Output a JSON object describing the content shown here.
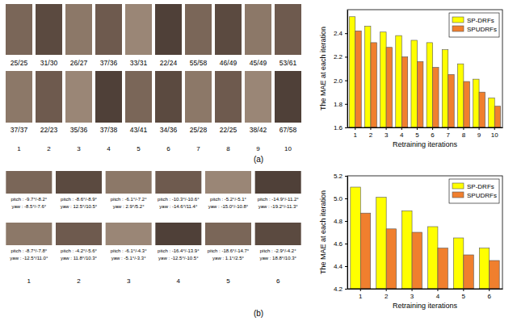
{
  "chart_data": [
    {
      "type": "bar",
      "x_label": "Retraining iterations",
      "y_label": "The MAE at each iteration",
      "categories": [
        "1",
        "2",
        "3",
        "4",
        "5",
        "6",
        "7",
        "8",
        "9",
        "10"
      ],
      "series": [
        {
          "name": "SP-DRFs",
          "color": "#ffff00",
          "values": [
            2.54,
            2.46,
            2.41,
            2.38,
            2.34,
            2.32,
            2.26,
            2.14,
            2.01,
            1.85
          ]
        },
        {
          "name": "SPUDRFs",
          "color": "#f07f2e",
          "values": [
            2.42,
            2.32,
            2.28,
            2.2,
            2.16,
            2.11,
            2.05,
            1.99,
            1.9,
            1.78
          ]
        }
      ],
      "ylim": [
        1.6,
        2.6
      ],
      "yticks": [
        1.6,
        1.8,
        {
          "value": 2,
          "label": "2.0"
        },
        2.2,
        2.4
      ],
      "grid": false,
      "legend": "upper right"
    },
    {
      "type": "bar",
      "x_label": "Retraining iterations",
      "y_label": "The MAE at each iteration",
      "categories": [
        "1",
        "2",
        "3",
        "4",
        "5",
        "6"
      ],
      "series": [
        {
          "name": "SP-DRFs",
          "color": "#ffff00",
          "values": [
            5.1,
            5.01,
            4.89,
            4.75,
            4.65,
            4.56
          ]
        },
        {
          "name": "SPUDRFs",
          "color": "#f07f2e",
          "values": [
            4.87,
            4.73,
            4.7,
            4.56,
            4.5,
            4.45
          ]
        }
      ],
      "ylim": [
        4.2,
        5.2
      ],
      "yticks": [
        4.2,
        4.4,
        4.6,
        4.8,
        {
          "value": 5,
          "label": "5.0"
        },
        5.2
      ],
      "grid": false,
      "legend": "upper right"
    }
  ],
  "figure": {
    "panels": [
      {
        "label": "(a)",
        "columns": [
          "1",
          "2",
          "3",
          "4",
          "5",
          "6",
          "7",
          "8",
          "9",
          "10"
        ],
        "rows": [
          [
            "25/25",
            "31/30",
            "26/27",
            "37/36",
            "33/31",
            "22/24",
            "55/58",
            "46/49",
            "45/49",
            "53/61"
          ],
          [
            "37/37",
            "22/23",
            "35/36",
            "37/38",
            "43/41",
            "34/36",
            "25/28",
            "22/25",
            "38/42",
            "67/58"
          ]
        ]
      },
      {
        "label": "(b)",
        "columns": [
          "1",
          "2",
          "3",
          "4",
          "5",
          "6"
        ],
        "rows": [
          [
            [
              "pitch : -9.7°/-8.2°",
              "yaw : -8.5°/-7.6°"
            ],
            [
              "pitch : -8.6°/-8.9°",
              "yaw : 12.5°/10.5°"
            ],
            [
              "pitch : -6.1°/-7.2°",
              "yaw : 2.9°/5.2°"
            ],
            [
              "pitch : -10.3°/-10.6°",
              "yaw : -14.6°/11.4°"
            ],
            [
              "pitch : -5.2°/-5.1°",
              "yaw : -15.0°/-10.8°"
            ],
            [
              "pitch : -14.9°/-11.2°",
              "yaw : -19.2°/-11.3°"
            ]
          ],
          [
            [
              "pitch : -8.7°/-7.8°",
              "yaw : -12.5°/11.0°"
            ],
            [
              "pitch : -4.2°/-5.6°",
              "yaw : 11.8°/10.3°"
            ],
            [
              "pitch : -6.1°/-4.3°",
              "yaw : -5.1°/-3.3°"
            ],
            [
              "pitch : -16.4°/-13.9°",
              "yaw : -12.5°/-10.5°"
            ],
            [
              "pitch : -18.6°/-14.7°",
              "yaw : 1.1°/2.5°"
            ],
            [
              "pitch : -2.9°/-4.2°",
              "yaw : 18.8°/10.3°"
            ]
          ]
        ]
      }
    ]
  }
}
